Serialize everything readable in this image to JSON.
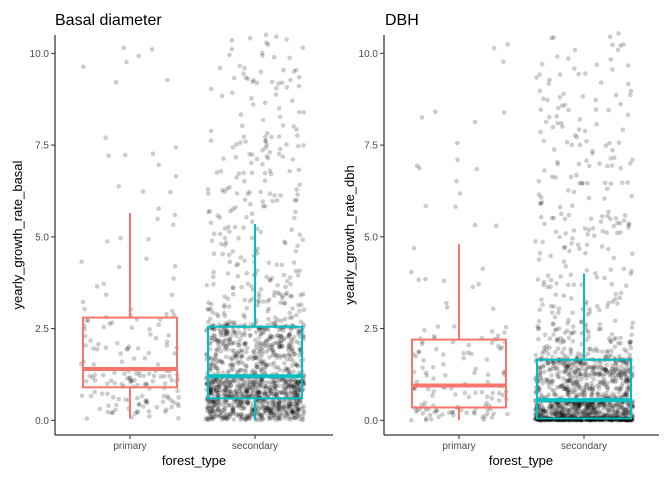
{
  "colors": {
    "primary": "#F8766D",
    "secondary": "#00BFC4",
    "points": "#000000"
  },
  "chart_data": [
    {
      "type": "boxplot",
      "title": "Basal diameter",
      "xlabel": "forest_type",
      "ylabel": "yearly_growth_rate_basal",
      "categories": [
        "primary",
        "secondary"
      ],
      "ylim": [
        -0.4,
        10.5
      ],
      "yticks": [
        0.0,
        2.5,
        5.0,
        7.5,
        10.0
      ],
      "ytick_labels": [
        "0.0",
        "2.5",
        "5.0",
        "7.5",
        "10.0"
      ],
      "grid": false,
      "legend": "none",
      "overlay": "jittered raw points (alpha)",
      "boxes": [
        {
          "category": "primary",
          "lower_whisker": 0.05,
          "q1": 0.9,
          "median": 1.4,
          "q3": 2.8,
          "upper_whisker": 5.65
        },
        {
          "category": "secondary",
          "lower_whisker": 0.0,
          "q1": 0.6,
          "median": 1.2,
          "q3": 2.55,
          "upper_whisker": 5.35
        }
      ],
      "points_approx": [
        {
          "category": "primary",
          "n": 180
        },
        {
          "category": "secondary",
          "n": 1400
        }
      ]
    },
    {
      "type": "boxplot",
      "title": "DBH",
      "xlabel": "forest_type",
      "ylabel": "yearly_growth_rate_dbh",
      "categories": [
        "primary",
        "secondary"
      ],
      "ylim": [
        -0.4,
        10.5
      ],
      "yticks": [
        0.0,
        2.5,
        5.0,
        7.5,
        10.0
      ],
      "ytick_labels": [
        "0.0",
        "2.5",
        "5.0",
        "7.5",
        "10.0"
      ],
      "grid": false,
      "legend": "none",
      "overlay": "jittered raw points (alpha)",
      "boxes": [
        {
          "category": "primary",
          "lower_whisker": 0.0,
          "q1": 0.35,
          "median": 0.95,
          "q3": 2.2,
          "upper_whisker": 4.8
        },
        {
          "category": "secondary",
          "lower_whisker": 0.0,
          "q1": 0.05,
          "median": 0.55,
          "q3": 1.65,
          "upper_whisker": 4.0
        }
      ],
      "points_approx": [
        {
          "category": "primary",
          "n": 150
        },
        {
          "category": "secondary",
          "n": 1500
        }
      ]
    }
  ]
}
